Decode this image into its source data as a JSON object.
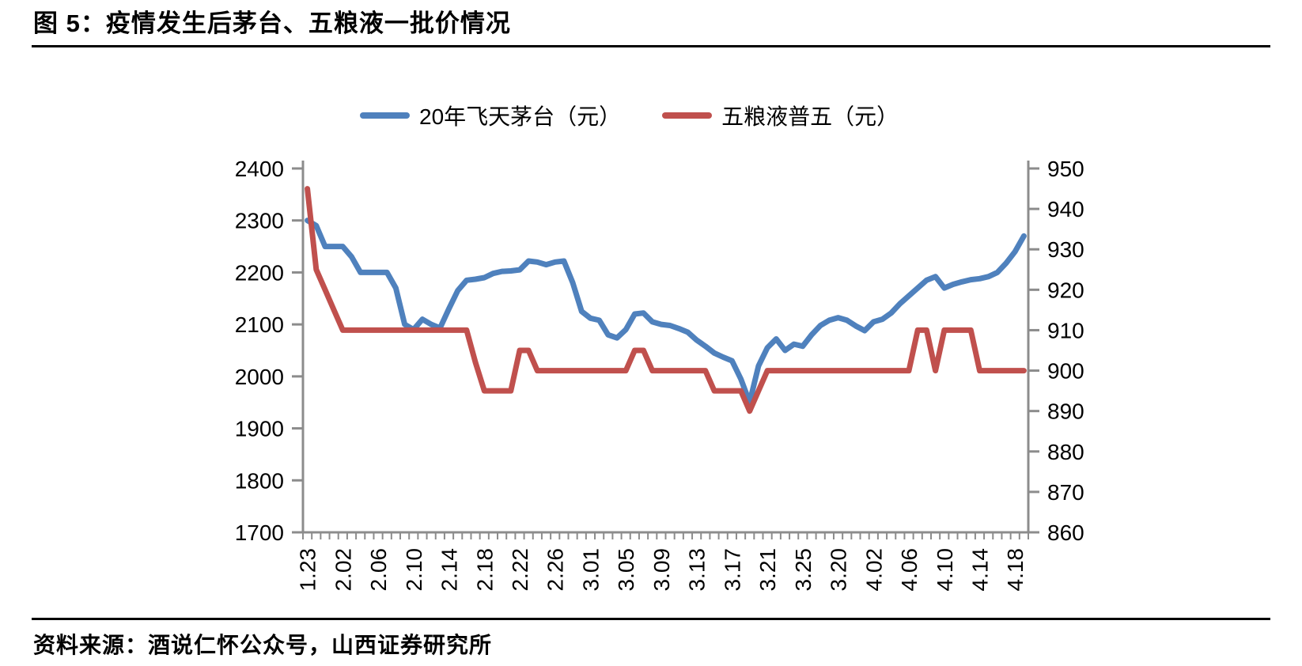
{
  "figure": {
    "title": "图 5：疫情发生后茅台、五粮液一批价情况",
    "source": "资料来源：酒说仁怀公众号，山西证券研究所"
  },
  "colors": {
    "maotai_blue": "#4F81BD",
    "wuliangye_red": "#C0504D",
    "axis_gray": "#8C8C8C",
    "rule_black": "#000000"
  },
  "chart_data": {
    "type": "line",
    "title": "",
    "grid": false,
    "legend_position": "top",
    "x_label_interval": 4,
    "x_tick_labels": [
      "1.23",
      "2.02",
      "2.06",
      "2.10",
      "2.14",
      "2.18",
      "2.22",
      "2.26",
      "3.01",
      "3.05",
      "3.09",
      "3.13",
      "3.17",
      "3.21",
      "3.25",
      "3.20",
      "4.02",
      "4.06",
      "4.10",
      "4.14",
      "4.18"
    ],
    "left_axis": {
      "min": 1700,
      "max": 2400,
      "ticks": [
        2400,
        2300,
        2200,
        2100,
        2000,
        1900,
        1800,
        1700
      ]
    },
    "right_axis": {
      "min": 860,
      "max": 950,
      "ticks": [
        950,
        940,
        930,
        920,
        910,
        900,
        890,
        880,
        870,
        860
      ]
    },
    "series": [
      {
        "name": "20年飞天茅台（元）",
        "color": "#4F81BD",
        "axis": "left",
        "values": [
          2300,
          2290,
          2250,
          2250,
          2250,
          2230,
          2200,
          2200,
          2200,
          2200,
          2170,
          2100,
          2090,
          2110,
          2100,
          2093,
          2130,
          2165,
          2185,
          2187,
          2190,
          2198,
          2202,
          2203,
          2205,
          2222,
          2220,
          2215,
          2220,
          2222,
          2180,
          2125,
          2112,
          2108,
          2080,
          2074,
          2090,
          2120,
          2122,
          2105,
          2100,
          2098,
          2092,
          2085,
          2070,
          2058,
          2045,
          2037,
          2030,
          1995,
          1950,
          2020,
          2055,
          2072,
          2050,
          2062,
          2058,
          2080,
          2098,
          2108,
          2113,
          2108,
          2097,
          2088,
          2105,
          2110,
          2122,
          2140,
          2155,
          2170,
          2185,
          2192,
          2170,
          2177,
          2182,
          2186,
          2188,
          2192,
          2200,
          2218,
          2240,
          2270
        ]
      },
      {
        "name": "五粮液普五（元）",
        "color": "#C0504D",
        "axis": "right",
        "values": [
          945,
          925,
          920,
          915,
          910,
          910,
          910,
          910,
          910,
          910,
          910,
          910,
          910,
          910,
          910,
          910,
          910,
          910,
          910,
          902,
          895,
          895,
          895,
          895,
          905,
          905,
          900,
          900,
          900,
          900,
          900,
          900,
          900,
          900,
          900,
          900,
          900,
          905,
          905,
          900,
          900,
          900,
          900,
          900,
          900,
          900,
          895,
          895,
          895,
          895,
          890,
          895,
          900,
          900,
          900,
          900,
          900,
          900,
          900,
          900,
          900,
          900,
          900,
          900,
          900,
          900,
          900,
          900,
          900,
          910,
          910,
          900,
          910,
          910,
          910,
          910,
          900,
          900,
          900,
          900,
          900,
          900
        ]
      }
    ]
  }
}
